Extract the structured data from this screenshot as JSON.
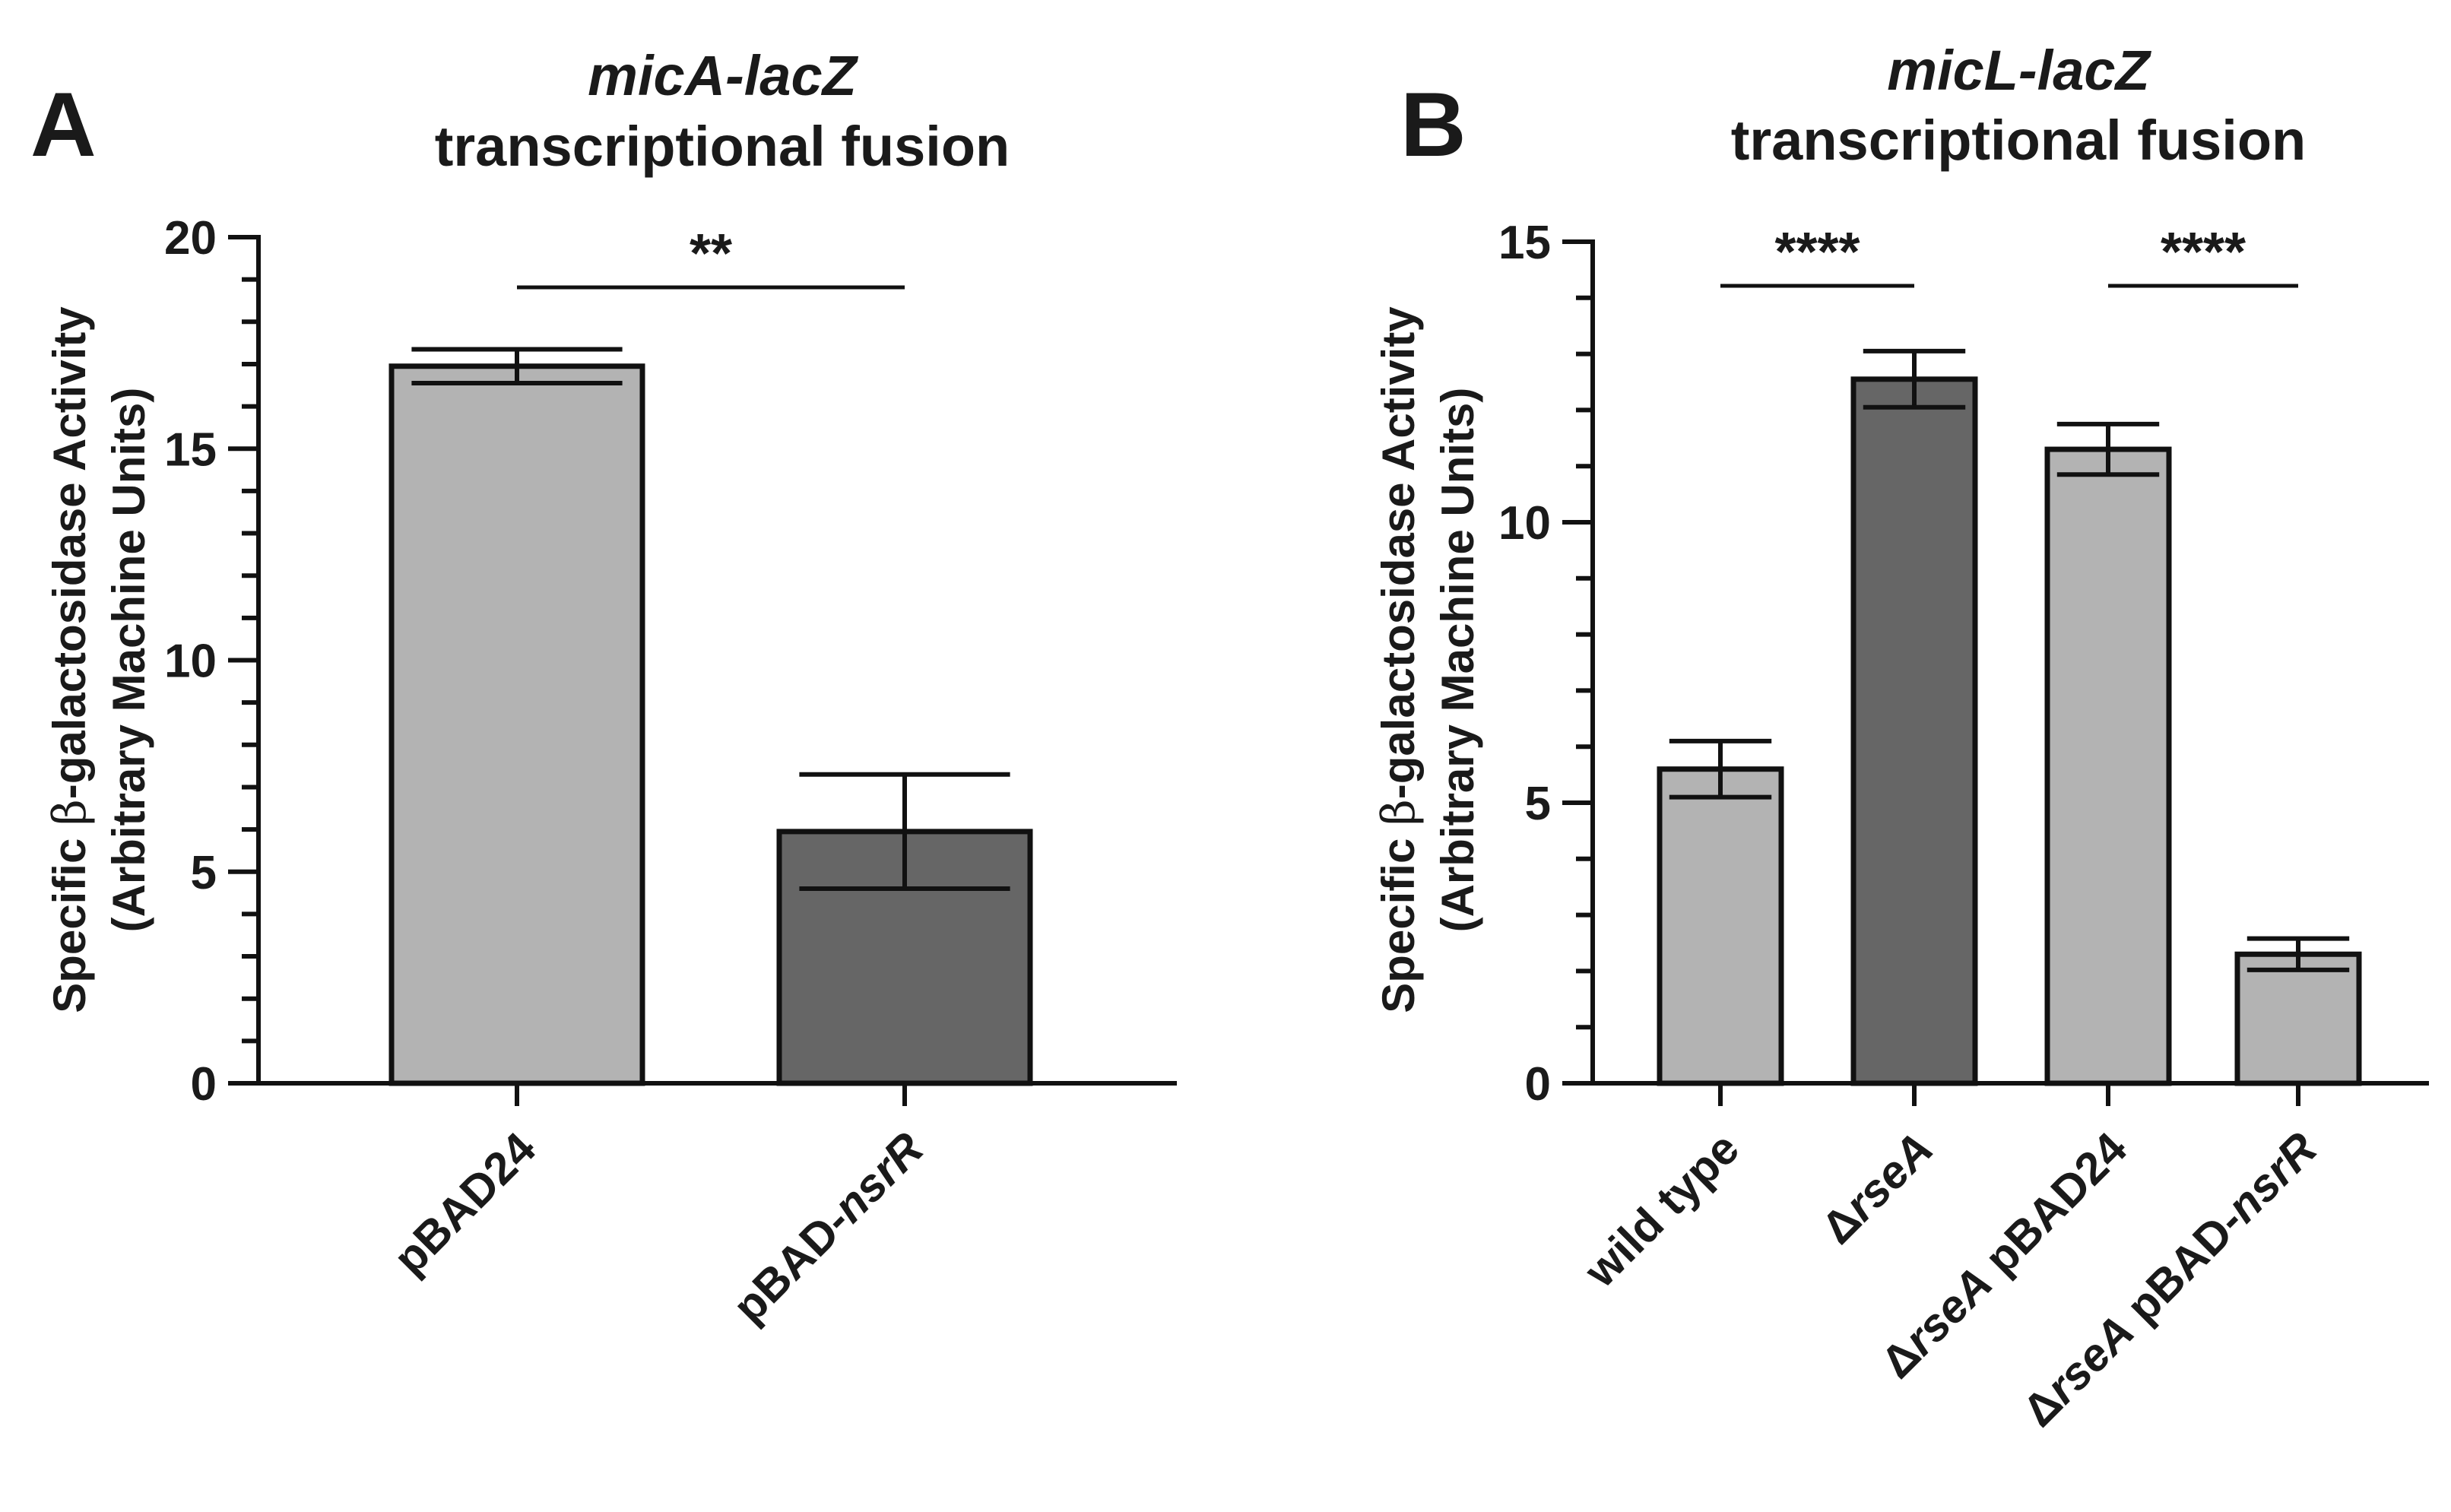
{
  "chart_data": [
    {
      "type": "bar",
      "panel_letter": "A",
      "title_italic": "micA-lacZ",
      "title_line2": "transcriptional fusion",
      "ylabel_pre": "Specific ",
      "ylabel_symbol": "β",
      "ylabel_post": "-galactosidase Activity",
      "ylabel_line2": "(Arbitrary Machine Units)",
      "ylim": [
        0,
        20
      ],
      "yticks": [
        0,
        5,
        10,
        15,
        20
      ],
      "categories": [
        {
          "label_parts": [
            {
              "text": "pBAD24",
              "italic": false
            }
          ]
        },
        {
          "label_parts": [
            {
              "text": "pBAD-",
              "italic": false
            },
            {
              "text": "nsrR",
              "italic": true
            }
          ]
        }
      ],
      "values": [
        16.95,
        5.95
      ],
      "errors": [
        0.4,
        1.35
      ],
      "colors": [
        "#b3b3b3",
        "#666666"
      ],
      "significance": [
        {
          "from": 0,
          "to": 1,
          "label": "**"
        }
      ]
    },
    {
      "type": "bar",
      "panel_letter": "B",
      "title_italic": "micL-lacZ",
      "title_line2": "transcriptional fusion",
      "ylabel_pre": "Specific ",
      "ylabel_symbol": "β",
      "ylabel_post": "-galactosidase Activity",
      "ylabel_line2": "(Arbitrary Machine Units)",
      "ylim": [
        0,
        15
      ],
      "yticks": [
        0,
        5,
        10,
        15
      ],
      "categories": [
        {
          "label_parts": [
            {
              "text": "wild type",
              "italic": false
            }
          ]
        },
        {
          "label_parts": [
            {
              "text": "Δ",
              "italic": false
            },
            {
              "text": "rseA",
              "italic": true
            }
          ]
        },
        {
          "label_parts": [
            {
              "text": "Δ",
              "italic": false
            },
            {
              "text": "rseA",
              "italic": true
            },
            {
              "text": " pBAD24",
              "italic": false
            }
          ]
        },
        {
          "label_parts": [
            {
              "text": "Δ",
              "italic": false
            },
            {
              "text": "rseA",
              "italic": true
            },
            {
              "text": " pBAD-",
              "italic": false
            },
            {
              "text": "nsrR",
              "italic": true
            }
          ]
        }
      ],
      "values": [
        5.6,
        12.55,
        11.3,
        2.3
      ],
      "errors": [
        0.5,
        0.5,
        0.45,
        0.28
      ],
      "colors": [
        "#b3b3b3",
        "#666666",
        "#b3b3b3",
        "#b3b3b3"
      ],
      "significance": [
        {
          "from": 0,
          "to": 1,
          "label": "****"
        },
        {
          "from": 2,
          "to": 3,
          "label": "****"
        }
      ]
    }
  ]
}
